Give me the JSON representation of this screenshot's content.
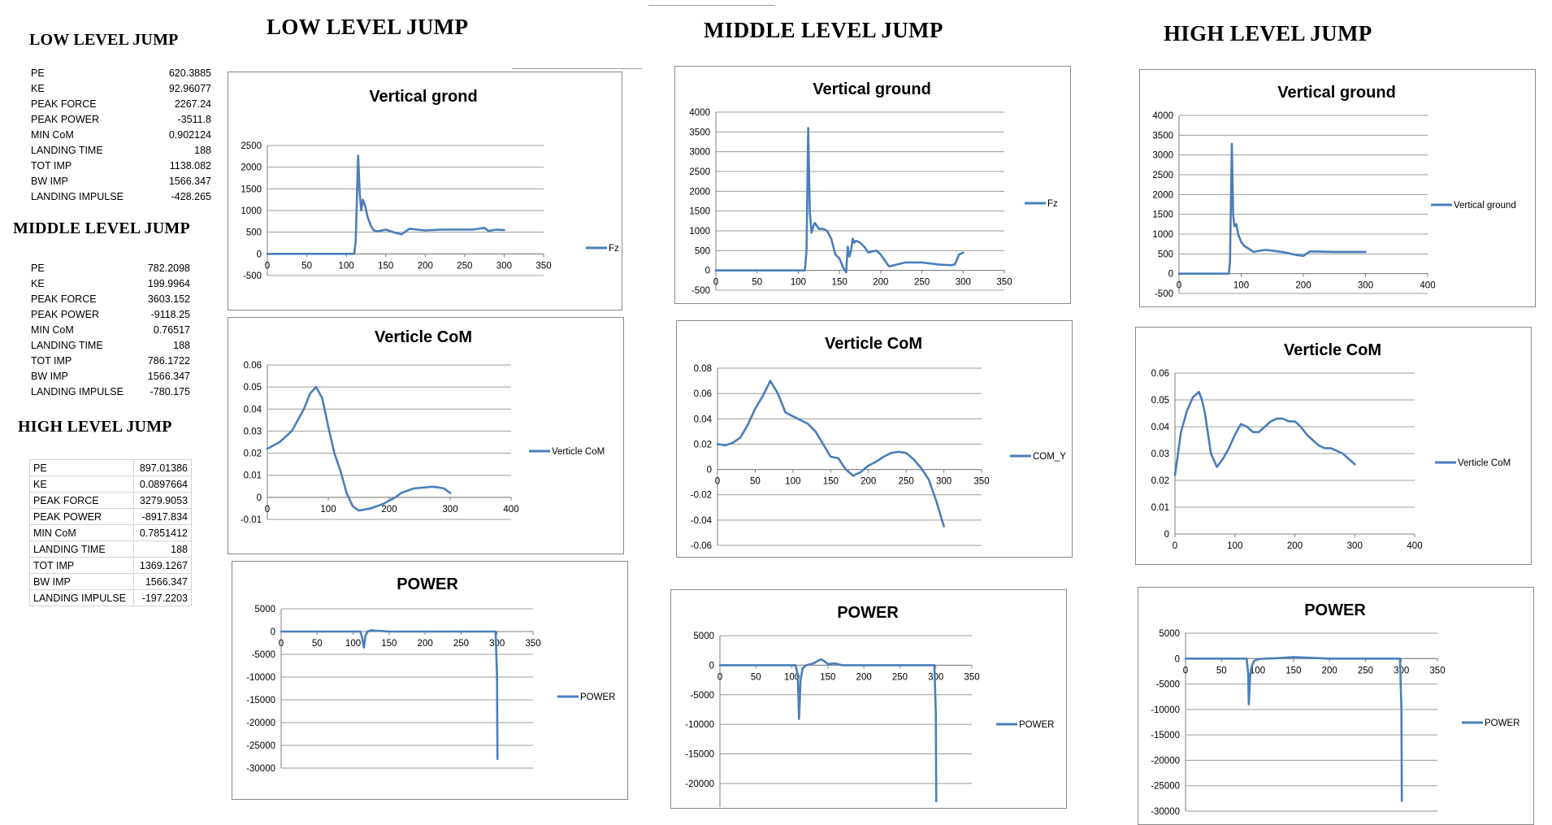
{
  "side": {
    "low": {
      "title": "LOW LEVEL JUMP",
      "rows": [
        {
          "label": "PE",
          "value": "620.3885"
        },
        {
          "label": "KE",
          "value": "92.96077"
        },
        {
          "label": "PEAK FORCE",
          "value": "2267.24"
        },
        {
          "label": "PEAK POWER",
          "value": "-3511.8"
        },
        {
          "label": "MIN CoM",
          "value": "0.902124"
        },
        {
          "label": "LANDING TIME",
          "value": "188"
        },
        {
          "label": "TOT IMP",
          "value": "1138.082"
        },
        {
          "label": "BW IMP",
          "value": "1566.347"
        },
        {
          "label": "LANDING IMPULSE",
          "value": "-428.265"
        }
      ]
    },
    "middle": {
      "title": "MIDDLE LEVEL JUMP",
      "rows": [
        {
          "label": "PE",
          "value": "782.2098"
        },
        {
          "label": "KE",
          "value": "199.9964"
        },
        {
          "label": "PEAK FORCE",
          "value": "3603.152"
        },
        {
          "label": "PEAK POWER",
          "value": "-9118.25"
        },
        {
          "label": "MIN CoM",
          "value": "0.76517"
        },
        {
          "label": "LANDING TIME",
          "value": "188"
        },
        {
          "label": "TOT IMP",
          "value": "786.1722"
        },
        {
          "label": "BW IMP",
          "value": "1566.347"
        },
        {
          "label": "LANDING IMPULSE",
          "value": "-780.175"
        }
      ]
    },
    "high": {
      "title": "HIGH LEVEL JUMP",
      "rows": [
        {
          "label": "PE",
          "value": "897.01386"
        },
        {
          "label": "KE",
          "value": "0.0897664"
        },
        {
          "label": "PEAK FORCE",
          "value": "3279.9053"
        },
        {
          "label": "PEAK POWER",
          "value": "-8917.834"
        },
        {
          "label": "MIN CoM",
          "value": "0.7851412"
        },
        {
          "label": "LANDING TIME",
          "value": "188"
        },
        {
          "label": "TOT IMP",
          "value": "1369.1267"
        },
        {
          "label": "BW IMP",
          "value": "1566.347"
        },
        {
          "label": "LANDING IMPULSE",
          "value": "-197.2203"
        }
      ]
    }
  },
  "columns": {
    "low_title": "LOW LEVEL JUMP",
    "middle_title": "MIDDLE LEVEL JUMP",
    "high_title": "HIGH LEVEL JUMP"
  },
  "line_color": "#4a7ebb",
  "chart_data": [
    {
      "id": "low-force",
      "type": "line",
      "title": "Vertical grond",
      "xlim": [
        0,
        350
      ],
      "ylim": [
        -500,
        2500
      ],
      "xticks": [
        0,
        50,
        100,
        150,
        200,
        250,
        300,
        350
      ],
      "yticks": [
        -500,
        0,
        500,
        1000,
        1500,
        2000,
        2500
      ],
      "series": [
        {
          "name": "Fz",
          "x": [
            0,
            110,
            112,
            115,
            117,
            119,
            121,
            124,
            127,
            131,
            135,
            140,
            150,
            160,
            170,
            180,
            190,
            200,
            220,
            240,
            260,
            275,
            280,
            290,
            300
          ],
          "y": [
            0,
            0,
            300,
            2267,
            1400,
            1000,
            1250,
            1100,
            850,
            650,
            540,
            520,
            560,
            500,
            450,
            580,
            560,
            540,
            560,
            560,
            560,
            600,
            530,
            560,
            550
          ]
        }
      ]
    },
    {
      "id": "low-com",
      "type": "line",
      "title": "Verticle CoM",
      "xlim": [
        0,
        400
      ],
      "ylim": [
        -0.01,
        0.06
      ],
      "xticks": [
        0,
        100,
        200,
        300,
        400
      ],
      "yticks": [
        -0.01,
        0,
        0.01,
        0.02,
        0.03,
        0.04,
        0.05,
        0.06
      ],
      "series": [
        {
          "name": "Verticle CoM",
          "x": [
            0,
            20,
            40,
            60,
            70,
            80,
            90,
            100,
            110,
            120,
            130,
            140,
            150,
            160,
            170,
            180,
            190,
            200,
            210,
            220,
            230,
            240,
            260,
            270,
            280,
            290,
            300
          ],
          "y": [
            0.022,
            0.025,
            0.03,
            0.04,
            0.047,
            0.05,
            0.045,
            0.032,
            0.02,
            0.012,
            0.002,
            -0.004,
            -0.006,
            -0.0055,
            -0.005,
            -0.004,
            -0.003,
            -0.0015,
            0,
            0.002,
            0.003,
            0.004,
            0.0045,
            0.0048,
            0.0045,
            0.004,
            0.002
          ]
        }
      ]
    },
    {
      "id": "low-power",
      "type": "line",
      "title": "POWER",
      "xlim": [
        0,
        350
      ],
      "ylim": [
        -30000,
        5000
      ],
      "xticks": [
        0,
        50,
        100,
        150,
        200,
        250,
        300,
        350
      ],
      "yticks": [
        -30000,
        -25000,
        -20000,
        -15000,
        -10000,
        -5000,
        0,
        5000
      ],
      "series": [
        {
          "name": "POWER",
          "x": [
            0,
            110,
            112,
            115,
            117,
            120,
            125,
            130,
            140,
            150,
            200,
            250,
            298,
            300,
            300.5
          ],
          "y": [
            0,
            0,
            -1000,
            -3500,
            -1000,
            0,
            300,
            200,
            100,
            0,
            0,
            0,
            0,
            -10000,
            -28000
          ]
        }
      ]
    },
    {
      "id": "mid-force",
      "type": "line",
      "title": "Vertical ground",
      "xlim": [
        0,
        350
      ],
      "ylim": [
        -500,
        4000
      ],
      "xticks": [
        0,
        50,
        100,
        150,
        200,
        250,
        300,
        350
      ],
      "yticks": [
        -500,
        0,
        500,
        1000,
        1500,
        2000,
        2500,
        3000,
        3500,
        4000
      ],
      "series": [
        {
          "name": "Fz",
          "x": [
            0,
            108,
            110,
            112,
            114,
            116,
            118,
            120,
            125,
            130,
            135,
            140,
            145,
            150,
            155,
            158,
            160,
            162,
            164,
            166,
            168,
            170,
            175,
            180,
            185,
            190,
            195,
            200,
            210,
            220,
            230,
            250,
            270,
            285,
            290,
            295,
            300
          ],
          "y": [
            0,
            0,
            500,
            3600,
            1500,
            950,
            1100,
            1200,
            1050,
            1050,
            1000,
            800,
            400,
            300,
            50,
            -50,
            600,
            350,
            500,
            800,
            700,
            750,
            700,
            600,
            450,
            480,
            500,
            400,
            100,
            150,
            200,
            200,
            150,
            130,
            150,
            400,
            450
          ]
        }
      ]
    },
    {
      "id": "mid-com",
      "type": "line",
      "title": "Verticle CoM",
      "xlim": [
        0,
        350
      ],
      "ylim": [
        -0.06,
        0.08
      ],
      "xticks": [
        0,
        50,
        100,
        150,
        200,
        250,
        300,
        350
      ],
      "yticks": [
        -0.06,
        -0.04,
        -0.02,
        0,
        0.02,
        0.04,
        0.06,
        0.08
      ],
      "series": [
        {
          "name": "COM_Y",
          "x": [
            0,
            10,
            20,
            30,
            40,
            50,
            60,
            70,
            80,
            90,
            100,
            110,
            120,
            130,
            140,
            150,
            160,
            170,
            180,
            190,
            200,
            210,
            220,
            230,
            240,
            250,
            260,
            270,
            280,
            290,
            300
          ],
          "y": [
            0.02,
            0.019,
            0.021,
            0.025,
            0.035,
            0.048,
            0.058,
            0.07,
            0.06,
            0.045,
            0.042,
            0.039,
            0.036,
            0.03,
            0.02,
            0.01,
            0.009,
            0,
            -0.005,
            -0.002,
            0.003,
            0.006,
            0.01,
            0.013,
            0.014,
            0.013,
            0.008,
            0.001,
            -0.008,
            -0.025,
            -0.045
          ]
        }
      ]
    },
    {
      "id": "mid-power",
      "type": "line",
      "title": "POWER",
      "xlim": [
        0,
        350
      ],
      "ylim": [
        -24000,
        5000
      ],
      "xticks": [
        0,
        50,
        100,
        150,
        200,
        250,
        300,
        350
      ],
      "yticks": [
        -20000,
        -15000,
        -10000,
        -5000,
        0,
        5000
      ],
      "series": [
        {
          "name": "POWER",
          "x": [
            0,
            105,
            108,
            110,
            112,
            115,
            120,
            130,
            140,
            145,
            150,
            160,
            170,
            200,
            250,
            298,
            300,
            300.5
          ],
          "y": [
            0,
            0,
            -1500,
            -9100,
            -2500,
            -500,
            0,
            300,
            1000,
            700,
            200,
            300,
            0,
            0,
            0,
            0,
            -8000,
            -23000
          ]
        }
      ]
    },
    {
      "id": "high-force",
      "type": "line",
      "title": "Vertical ground",
      "xlim": [
        0,
        400
      ],
      "ylim": [
        -500,
        4000
      ],
      "xticks": [
        0,
        100,
        200,
        300,
        400
      ],
      "yticks": [
        -500,
        0,
        500,
        1000,
        1500,
        2000,
        2500,
        3000,
        3500,
        4000
      ],
      "series": [
        {
          "name": "Vertical ground",
          "x": [
            0,
            80,
            82,
            85,
            87,
            89,
            92,
            95,
            100,
            105,
            110,
            115,
            120,
            130,
            140,
            150,
            160,
            170,
            180,
            190,
            200,
            210,
            220,
            250,
            300
          ],
          "y": [
            0,
            0,
            300,
            3280,
            1500,
            1200,
            1250,
            1000,
            800,
            700,
            650,
            600,
            550,
            580,
            600,
            580,
            560,
            540,
            500,
            470,
            450,
            560,
            560,
            550,
            550
          ]
        }
      ]
    },
    {
      "id": "high-com",
      "type": "line",
      "title": "Verticle CoM",
      "xlim": [
        0,
        400
      ],
      "ylim": [
        0,
        0.06
      ],
      "xticks": [
        0,
        100,
        200,
        300,
        400
      ],
      "yticks": [
        0,
        0.01,
        0.02,
        0.03,
        0.04,
        0.05,
        0.06
      ],
      "series": [
        {
          "name": "Verticle CoM",
          "x": [
            0,
            10,
            20,
            30,
            40,
            45,
            50,
            60,
            70,
            80,
            90,
            100,
            110,
            120,
            130,
            140,
            150,
            160,
            170,
            180,
            190,
            200,
            210,
            220,
            230,
            240,
            250,
            260,
            270,
            280,
            290,
            300
          ],
          "y": [
            0.022,
            0.038,
            0.046,
            0.051,
            0.053,
            0.05,
            0.045,
            0.03,
            0.025,
            0.028,
            0.032,
            0.037,
            0.041,
            0.04,
            0.038,
            0.038,
            0.04,
            0.042,
            0.043,
            0.043,
            0.042,
            0.042,
            0.04,
            0.037,
            0.035,
            0.033,
            0.032,
            0.032,
            0.031,
            0.03,
            0.028,
            0.026
          ]
        }
      ]
    },
    {
      "id": "high-power",
      "type": "line",
      "title": "POWER",
      "xlim": [
        0,
        350
      ],
      "ylim": [
        -30000,
        5000
      ],
      "xticks": [
        0,
        50,
        100,
        150,
        200,
        250,
        300,
        350
      ],
      "yticks": [
        -30000,
        -25000,
        -20000,
        -15000,
        -10000,
        -5000,
        0,
        5000
      ],
      "series": [
        {
          "name": "POWER",
          "x": [
            0,
            85,
            87,
            88,
            89,
            90,
            92,
            95,
            100,
            110,
            130,
            150,
            200,
            250,
            298,
            300,
            300.5
          ],
          "y": [
            0,
            0,
            -3000,
            -9000,
            -6000,
            -3000,
            -1500,
            -500,
            -100,
            0,
            100,
            300,
            0,
            0,
            0,
            -10000,
            -28000
          ]
        }
      ]
    }
  ]
}
